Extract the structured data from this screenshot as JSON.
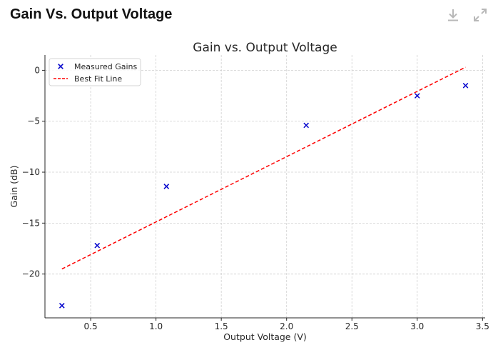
{
  "page": {
    "title": "Gain Vs. Output Voltage"
  },
  "toolbar": {
    "download_icon": "download-icon",
    "expand_icon": "expand-icon",
    "icon_color": "#b8b8b8"
  },
  "chart_data": {
    "type": "scatter",
    "title": "Gain vs. Output Voltage",
    "xlabel": "Output Voltage (V)",
    "ylabel": "Gain (dB)",
    "xlim": [
      0.15,
      3.52
    ],
    "ylim": [
      -24.3,
      1.5
    ],
    "x_ticks": [
      0.5,
      1.0,
      1.5,
      2.0,
      2.5,
      3.0,
      3.5
    ],
    "x_tick_labels": [
      "0.5",
      "1.0",
      "1.5",
      "2.0",
      "2.5",
      "3.0",
      "3.5"
    ],
    "y_ticks": [
      0,
      -5,
      -10,
      -15,
      -20
    ],
    "y_tick_labels": [
      "0",
      "−5",
      "−10",
      "−15",
      "−20"
    ],
    "grid": true,
    "legend_position": "top-left",
    "series": [
      {
        "name": "Measured Gains",
        "kind": "scatter",
        "marker": "x",
        "color": "#0000cc",
        "x": [
          0.28,
          0.55,
          1.08,
          2.15,
          3.0,
          3.37
        ],
        "y": [
          -23.1,
          -17.2,
          -11.4,
          -5.4,
          -2.5,
          -1.5
        ]
      },
      {
        "name": "Best Fit Line",
        "kind": "line",
        "style": "dashed",
        "color": "#ff0000",
        "x": [
          0.28,
          3.37
        ],
        "y": [
          -19.5,
          0.3
        ]
      }
    ]
  }
}
